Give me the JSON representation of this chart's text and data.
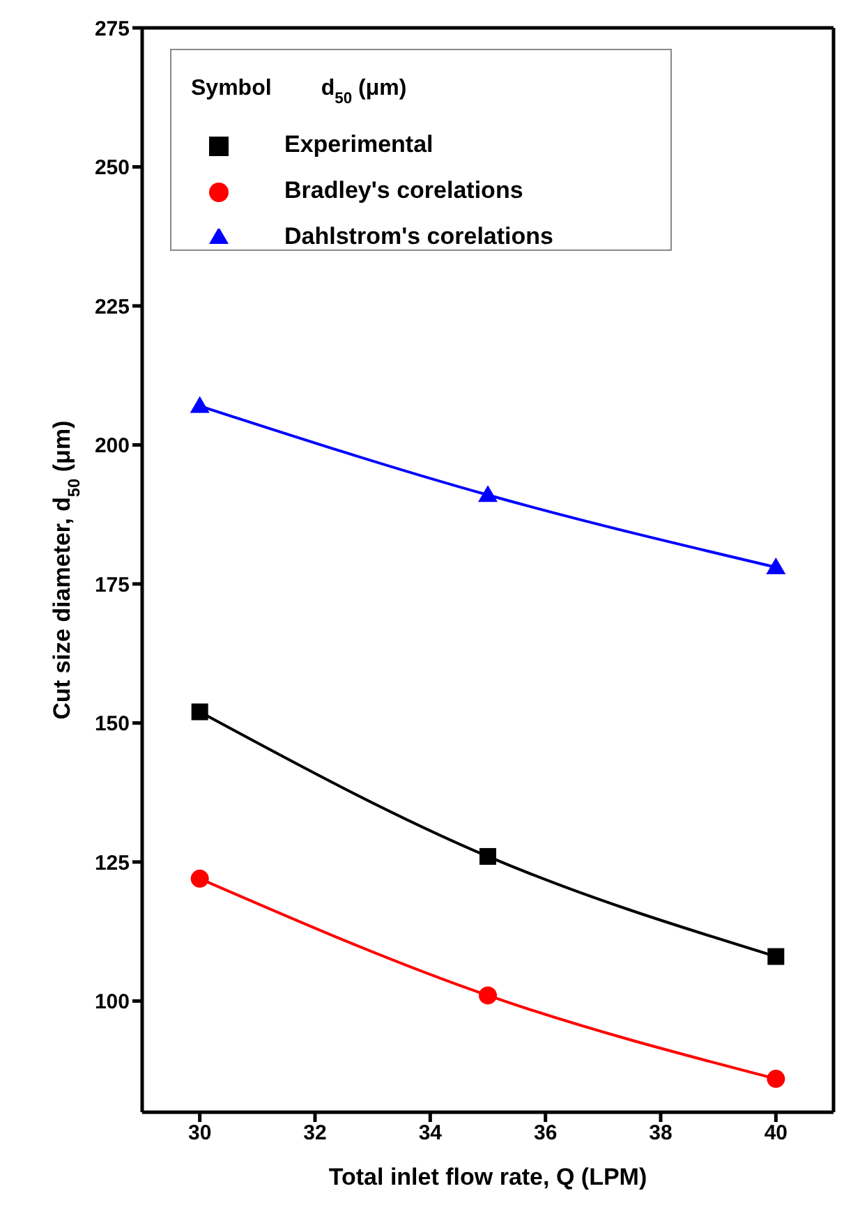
{
  "chart_data": {
    "type": "line",
    "xlabel": "Total inlet flow rate, Q (LPM)",
    "ylabel": "Cut size diameter, d$_{50}$ (μm)",
    "legend_title": "Symbol        d$_{50}$ (μm)",
    "x": [
      30,
      35,
      40
    ],
    "series": [
      {
        "name": "Experimental",
        "color": "#000000",
        "marker": "square",
        "values": [
          152,
          126,
          108
        ]
      },
      {
        "name": "Bradley's corelations",
        "color": "#ff0000",
        "marker": "circle",
        "values": [
          122,
          101,
          86
        ]
      },
      {
        "name": "Dahlstrom's corelations",
        "color": "#0000ff",
        "marker": "triangle",
        "values": [
          207,
          191,
          178
        ]
      }
    ],
    "xlim": [
      29,
      41
    ],
    "xticks": [
      30,
      32,
      34,
      36,
      38,
      40
    ],
    "ylim": [
      80,
      275
    ],
    "yticks": [
      100,
      125,
      150,
      175,
      200,
      225,
      250,
      275
    ],
    "grid": false,
    "legend": "top left",
    "line_style": "solid"
  }
}
